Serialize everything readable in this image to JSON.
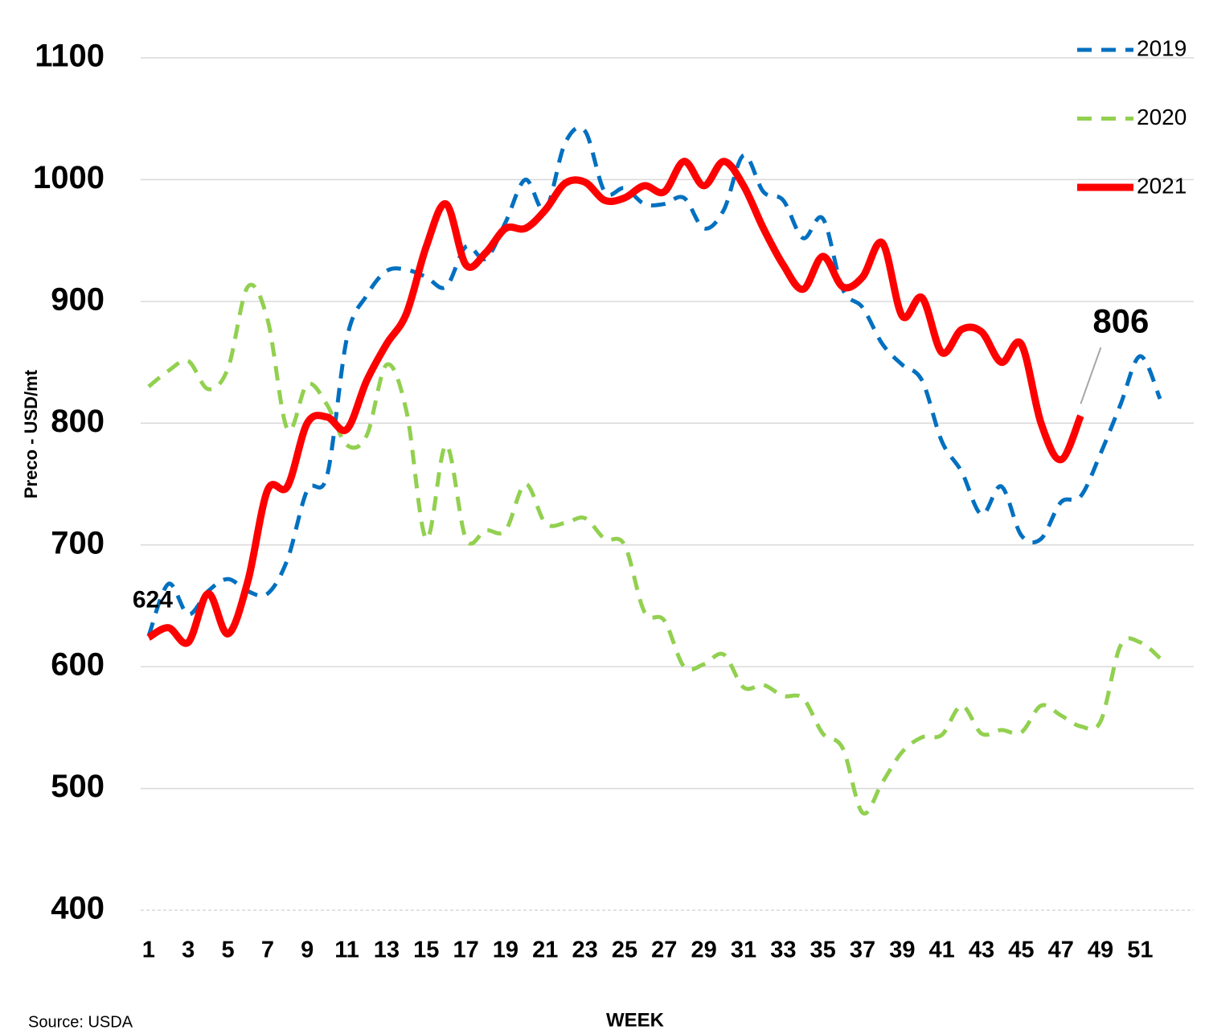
{
  "chart_data": {
    "type": "line",
    "y_label": "Preco - USD/mt",
    "x_label": "WEEK",
    "source": "Source: USDA",
    "x": [
      1,
      2,
      3,
      4,
      5,
      6,
      7,
      8,
      9,
      10,
      11,
      12,
      13,
      14,
      15,
      16,
      17,
      18,
      19,
      20,
      21,
      22,
      23,
      24,
      25,
      26,
      27,
      28,
      29,
      30,
      31,
      32,
      33,
      34,
      35,
      36,
      37,
      38,
      39,
      40,
      41,
      42,
      43,
      44,
      45,
      46,
      47,
      48,
      49,
      50,
      51,
      52
    ],
    "xlim": [
      0.6,
      53.7
    ],
    "xticks": [
      1,
      3,
      5,
      7,
      9,
      11,
      13,
      15,
      17,
      19,
      21,
      23,
      25,
      27,
      29,
      31,
      33,
      35,
      37,
      39,
      41,
      43,
      45,
      47,
      49,
      51
    ],
    "ylim": [
      400,
      1100
    ],
    "yticks": [
      400,
      500,
      600,
      700,
      800,
      900,
      1000,
      1100
    ],
    "grid": true,
    "legend": "top-right",
    "series": [
      {
        "name": "2019",
        "color": "#0070c0",
        "dash": true,
        "values": [
          625,
          668,
          643,
          662,
          672,
          662,
          660,
          688,
          745,
          757,
          870,
          905,
          925,
          926,
          920,
          912,
          945,
          935,
          965,
          1000,
          975,
          1030,
          1040,
          990,
          993,
          980,
          980,
          985,
          960,
          975,
          1020,
          990,
          983,
          952,
          968,
          910,
          895,
          865,
          848,
          835,
          785,
          760,
          725,
          748,
          708,
          705,
          735,
          740,
          775,
          815,
          855,
          820
        ]
      },
      {
        "name": "2020",
        "color": "#92d050",
        "dash": true,
        "values": [
          830,
          843,
          851,
          828,
          845,
          912,
          885,
          795,
          832,
          815,
          782,
          790,
          848,
          810,
          705,
          782,
          705,
          712,
          712,
          750,
          718,
          718,
          722,
          705,
          700,
          645,
          638,
          600,
          602,
          610,
          583,
          585,
          576,
          574,
          545,
          533,
          480,
          505,
          530,
          542,
          544,
          568,
          545,
          548,
          546,
          568,
          560,
          551,
          555,
          617,
          620,
          607
        ]
      },
      {
        "name": "2021",
        "color": "#ff0000",
        "dash": false,
        "values": [
          624,
          632,
          620,
          660,
          627,
          670,
          745,
          748,
          800,
          805,
          795,
          835,
          865,
          890,
          945,
          980,
          930,
          940,
          960,
          960,
          975,
          997,
          998,
          983,
          985,
          995,
          990,
          1015,
          995,
          1015,
          995,
          960,
          930,
          910,
          937,
          912,
          920,
          948,
          888,
          903,
          858,
          877,
          875,
          850,
          865,
          800,
          770,
          806,
          null,
          null,
          null,
          null
        ],
        "data_labels": [
          0,
          47
        ]
      }
    ]
  }
}
